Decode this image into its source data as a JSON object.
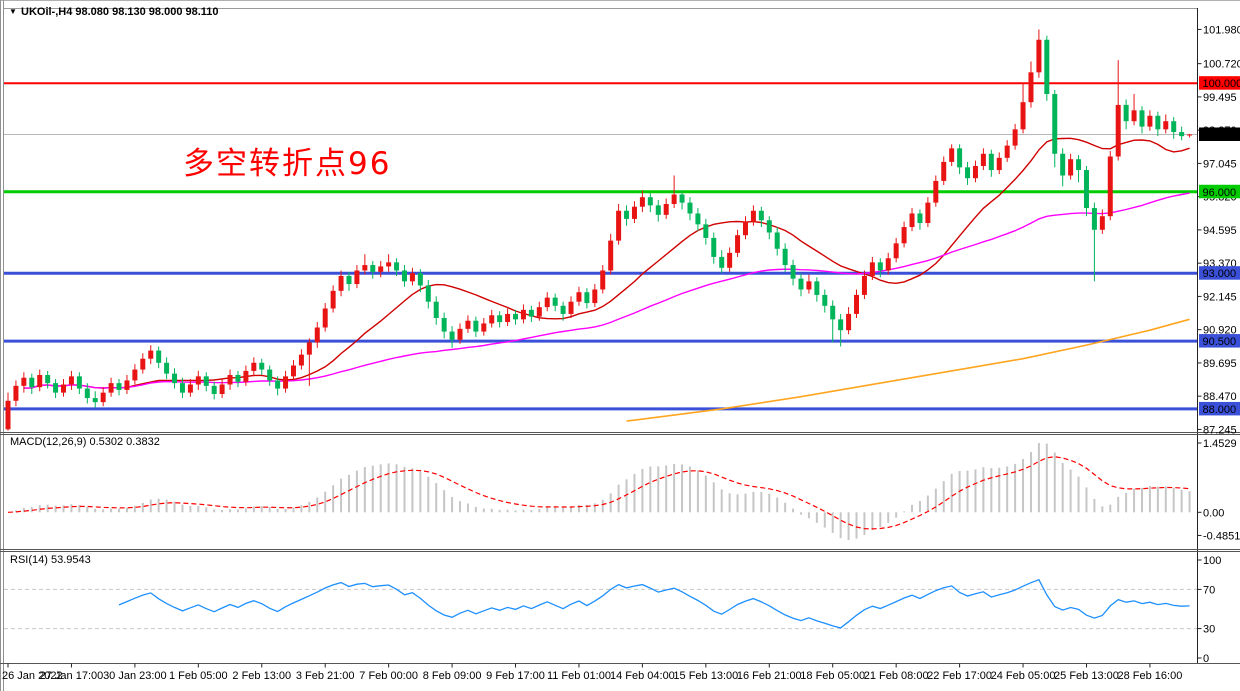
{
  "header": {
    "title": "UKOil-,H4 98.080 98.130 98.000 98.110",
    "symbol": "UKOil-",
    "period": "H4",
    "open": "98.080",
    "high": "98.130",
    "low": "98.000",
    "close": "98.110"
  },
  "icons": {
    "symbol_marker": "▼"
  },
  "annotation": {
    "text": "多空转折点96",
    "color": "#ff0000"
  },
  "indicators": {
    "macd_label": "MACD(12,26,9) 0.5302 0.3832",
    "rsi_label": "RSI(14) 53.9543"
  },
  "axes": {
    "price_ticks": [
      "101.980",
      "100.720",
      "99.495",
      "98.270",
      "97.045",
      "95.820",
      "94.595",
      "93.370",
      "92.145",
      "90.920",
      "89.695",
      "88.470",
      "87.245"
    ],
    "macd_ticks": [
      "1.4529",
      "0.00",
      "-0.4851"
    ],
    "rsi_ticks": [
      "100",
      "70",
      "30",
      "0"
    ],
    "time_ticks": [
      "26 Jan 2022",
      "27 Jan 17:00",
      "30 Jan 23:00",
      "1 Feb 05:00",
      "2 Feb 13:00",
      "3 Feb 21:00",
      "7 Feb 00:00",
      "8 Feb 09:00",
      "9 Feb 17:00",
      "11 Feb 01:00",
      "14 Feb 04:00",
      "15 Feb 13:00",
      "16 Feb 21:00",
      "18 Feb 05:00",
      "21 Feb 08:00",
      "22 Feb 17:00",
      "24 Feb 05:00",
      "25 Feb 13:00",
      "28 Feb 16:00"
    ],
    "bars_per_time_tick": 8
  },
  "levels": [
    {
      "label": "100.000",
      "price": 100.0,
      "color": "#ff0000",
      "width": 2
    },
    {
      "label": "96.000",
      "price": 96.0,
      "color": "#00cc00",
      "width": 3
    },
    {
      "label": "93.000",
      "price": 93.0,
      "color": "#3a50d9",
      "width": 3
    },
    {
      "label": "90.500",
      "price": 90.5,
      "color": "#3a50d9",
      "width": 3
    },
    {
      "label": "88.000",
      "price": 88.0,
      "color": "#3a50d9",
      "width": 3
    }
  ],
  "current_price": {
    "label": "98.110",
    "value": 98.11,
    "badge_color": "#000000",
    "line_color": "#b8b8b8"
  },
  "chart_data": [
    {
      "type": "candlestick",
      "title": "UKOil- H4",
      "up_color": "#e81414",
      "down_color": "#00b45a",
      "ylim": [
        87.15,
        102.77
      ],
      "ohlc": [
        [
          87.25,
          88.6,
          87.2,
          88.3
        ],
        [
          88.3,
          89.05,
          88.1,
          88.85
        ],
        [
          88.85,
          89.35,
          88.6,
          89.15
        ],
        [
          89.15,
          89.3,
          88.55,
          88.8
        ],
        [
          88.8,
          89.45,
          88.65,
          89.25
        ],
        [
          89.25,
          89.4,
          88.75,
          88.95
        ],
        [
          88.95,
          89.1,
          88.4,
          88.6
        ],
        [
          88.6,
          89.1,
          88.45,
          88.9
        ],
        [
          88.9,
          89.4,
          88.7,
          89.2
        ],
        [
          89.2,
          89.35,
          88.55,
          88.75
        ],
        [
          88.75,
          88.95,
          88.2,
          88.4
        ],
        [
          88.4,
          88.65,
          88.05,
          88.25
        ],
        [
          88.25,
          88.8,
          88.1,
          88.6
        ],
        [
          88.6,
          89.15,
          88.45,
          88.95
        ],
        [
          88.95,
          89.1,
          88.5,
          88.7
        ],
        [
          88.7,
          89.25,
          88.55,
          89.05
        ],
        [
          89.05,
          89.65,
          88.9,
          89.45
        ],
        [
          89.45,
          90.05,
          89.3,
          89.85
        ],
        [
          89.85,
          90.35,
          89.65,
          90.15
        ],
        [
          90.15,
          90.3,
          89.5,
          89.7
        ],
        [
          89.7,
          89.9,
          89.1,
          89.3
        ],
        [
          89.3,
          89.5,
          88.75,
          88.95
        ],
        [
          88.95,
          89.15,
          88.4,
          88.6
        ],
        [
          88.6,
          89.1,
          88.45,
          88.9
        ],
        [
          88.9,
          89.4,
          88.7,
          89.2
        ],
        [
          89.2,
          89.35,
          88.65,
          88.85
        ],
        [
          88.85,
          89.0,
          88.35,
          88.55
        ],
        [
          88.55,
          89.1,
          88.4,
          88.9
        ],
        [
          88.9,
          89.45,
          88.7,
          89.25
        ],
        [
          89.25,
          89.4,
          88.8,
          89.0
        ],
        [
          89.0,
          89.6,
          88.85,
          89.4
        ],
        [
          89.4,
          89.9,
          89.2,
          89.7
        ],
        [
          89.7,
          89.85,
          89.25,
          89.45
        ],
        [
          89.45,
          89.6,
          88.85,
          89.05
        ],
        [
          89.05,
          89.2,
          88.5,
          88.75
        ],
        [
          88.75,
          89.4,
          88.6,
          89.2
        ],
        [
          89.2,
          89.8,
          89.05,
          89.6
        ],
        [
          89.6,
          90.2,
          89.45,
          90.0
        ],
        [
          90.0,
          90.6,
          88.85,
          90.45
        ],
        [
          90.45,
          91.2,
          90.25,
          91.0
        ],
        [
          91.0,
          91.9,
          90.85,
          91.7
        ],
        [
          91.7,
          92.55,
          91.55,
          92.35
        ],
        [
          92.35,
          93.1,
          92.15,
          92.9
        ],
        [
          92.9,
          93.05,
          92.35,
          92.6
        ],
        [
          92.6,
          93.3,
          92.45,
          93.1
        ],
        [
          93.1,
          93.7,
          92.95,
          93.3
        ],
        [
          93.3,
          93.45,
          92.8,
          93.05
        ],
        [
          93.05,
          93.45,
          92.85,
          93.25
        ],
        [
          93.25,
          93.7,
          93.05,
          93.4
        ],
        [
          93.4,
          93.55,
          92.9,
          93.1
        ],
        [
          93.1,
          93.3,
          92.5,
          92.7
        ],
        [
          92.7,
          93.2,
          92.55,
          93.0
        ],
        [
          93.0,
          93.15,
          92.3,
          92.55
        ],
        [
          92.55,
          92.75,
          91.7,
          91.95
        ],
        [
          91.95,
          92.15,
          91.1,
          91.35
        ],
        [
          91.35,
          91.55,
          90.6,
          90.85
        ],
        [
          90.85,
          91.05,
          90.25,
          90.55
        ],
        [
          90.55,
          91.15,
          90.4,
          90.95
        ],
        [
          90.95,
          91.45,
          90.8,
          91.25
        ],
        [
          91.25,
          91.4,
          90.65,
          90.85
        ],
        [
          90.85,
          91.35,
          90.7,
          91.15
        ],
        [
          91.15,
          91.65,
          91.0,
          91.45
        ],
        [
          91.45,
          91.6,
          91.0,
          91.2
        ],
        [
          91.2,
          91.7,
          91.05,
          91.5
        ],
        [
          91.5,
          91.65,
          91.1,
          91.3
        ],
        [
          91.3,
          91.85,
          91.15,
          91.65
        ],
        [
          91.65,
          91.8,
          91.2,
          91.4
        ],
        [
          91.4,
          91.95,
          91.25,
          91.75
        ],
        [
          91.75,
          92.3,
          91.6,
          92.1
        ],
        [
          92.1,
          92.25,
          91.6,
          91.8
        ],
        [
          91.8,
          91.95,
          91.25,
          91.5
        ],
        [
          91.5,
          92.15,
          91.35,
          91.95
        ],
        [
          91.95,
          92.5,
          91.8,
          92.3
        ],
        [
          92.3,
          92.45,
          91.7,
          91.9
        ],
        [
          91.9,
          92.6,
          91.75,
          92.4
        ],
        [
          92.4,
          93.3,
          92.25,
          93.1
        ],
        [
          93.1,
          94.45,
          92.95,
          94.2
        ],
        [
          94.2,
          95.55,
          94.05,
          95.3
        ],
        [
          95.3,
          95.5,
          94.75,
          95.0
        ],
        [
          95.0,
          95.65,
          94.85,
          95.45
        ],
        [
          95.45,
          96.05,
          95.25,
          95.8
        ],
        [
          95.8,
          95.95,
          95.25,
          95.5
        ],
        [
          95.5,
          95.7,
          94.9,
          95.15
        ],
        [
          95.15,
          95.75,
          95.0,
          95.55
        ],
        [
          95.55,
          96.6,
          95.4,
          95.9
        ],
        [
          95.9,
          96.05,
          95.35,
          95.6
        ],
        [
          95.6,
          95.8,
          94.95,
          95.2
        ],
        [
          95.2,
          95.4,
          94.55,
          94.8
        ],
        [
          94.8,
          95.0,
          94.05,
          94.3
        ],
        [
          94.3,
          94.5,
          93.35,
          93.6
        ],
        [
          93.6,
          93.85,
          93.0,
          93.2
        ],
        [
          93.2,
          93.95,
          93.05,
          93.75
        ],
        [
          93.75,
          94.6,
          93.6,
          94.4
        ],
        [
          94.4,
          95.1,
          94.25,
          94.9
        ],
        [
          94.9,
          95.5,
          94.75,
          95.3
        ],
        [
          95.3,
          95.45,
          94.7,
          94.95
        ],
        [
          94.95,
          95.1,
          94.25,
          94.5
        ],
        [
          94.5,
          94.7,
          93.65,
          93.9
        ],
        [
          93.9,
          94.1,
          93.05,
          93.3
        ],
        [
          93.3,
          93.5,
          92.55,
          92.8
        ],
        [
          92.8,
          93.0,
          92.15,
          92.4
        ],
        [
          92.4,
          92.95,
          92.25,
          92.7
        ],
        [
          92.7,
          92.85,
          91.95,
          92.2
        ],
        [
          92.2,
          92.4,
          91.55,
          91.8
        ],
        [
          91.8,
          92.0,
          90.45,
          91.3
        ],
        [
          91.3,
          91.5,
          90.3,
          90.9
        ],
        [
          90.9,
          91.75,
          90.75,
          91.5
        ],
        [
          91.5,
          92.4,
          91.35,
          92.2
        ],
        [
          92.2,
          93.1,
          92.05,
          92.9
        ],
        [
          92.9,
          93.6,
          92.75,
          93.4
        ],
        [
          93.4,
          93.55,
          92.85,
          93.1
        ],
        [
          93.1,
          93.75,
          92.95,
          93.55
        ],
        [
          93.55,
          94.3,
          93.4,
          94.1
        ],
        [
          94.1,
          94.9,
          93.95,
          94.7
        ],
        [
          94.7,
          95.4,
          94.55,
          95.2
        ],
        [
          95.2,
          95.35,
          94.6,
          94.85
        ],
        [
          94.85,
          95.8,
          94.7,
          95.6
        ],
        [
          95.6,
          96.6,
          95.45,
          96.4
        ],
        [
          96.4,
          97.3,
          96.25,
          97.1
        ],
        [
          97.1,
          97.75,
          96.95,
          97.6
        ],
        [
          97.6,
          97.75,
          96.65,
          96.9
        ],
        [
          96.9,
          97.1,
          96.25,
          96.5
        ],
        [
          96.5,
          97.15,
          96.35,
          96.95
        ],
        [
          96.95,
          97.6,
          96.8,
          97.4
        ],
        [
          97.4,
          97.55,
          96.55,
          96.8
        ],
        [
          96.8,
          97.45,
          96.65,
          97.25
        ],
        [
          97.25,
          97.9,
          97.1,
          97.7
        ],
        [
          97.7,
          98.5,
          97.55,
          98.3
        ],
        [
          98.3,
          100.0,
          98.15,
          99.3
        ],
        [
          99.3,
          100.8,
          99.1,
          100.4
        ],
        [
          100.4,
          101.98,
          100.2,
          101.6
        ],
        [
          101.6,
          101.75,
          99.35,
          99.6
        ],
        [
          99.6,
          99.75,
          96.9,
          97.4
        ],
        [
          97.4,
          97.6,
          96.2,
          96.6
        ],
        [
          96.6,
          97.4,
          96.45,
          97.2
        ],
        [
          97.2,
          97.35,
          96.35,
          96.8
        ],
        [
          96.8,
          96.95,
          95.1,
          95.4
        ],
        [
          95.4,
          95.6,
          92.7,
          94.6
        ],
        [
          94.6,
          95.35,
          94.45,
          95.1
        ],
        [
          95.1,
          97.5,
          94.95,
          97.3
        ],
        [
          97.3,
          100.85,
          97.15,
          99.2
        ],
        [
          99.2,
          99.4,
          98.3,
          98.6
        ],
        [
          98.6,
          99.6,
          98.45,
          99.0
        ],
        [
          99.0,
          99.15,
          98.15,
          98.4
        ],
        [
          98.4,
          99.0,
          98.25,
          98.8
        ],
        [
          98.8,
          98.95,
          98.05,
          98.3
        ],
        [
          98.3,
          98.85,
          98.15,
          98.6
        ],
        [
          98.6,
          98.75,
          97.95,
          98.2
        ],
        [
          98.2,
          98.4,
          97.9,
          98.05
        ],
        [
          98.08,
          98.13,
          98.0,
          98.11
        ]
      ],
      "moving_averages": [
        {
          "name": "ma-fast",
          "type": "sma",
          "period": 16,
          "color": "#d00000"
        },
        {
          "name": "ma-mid",
          "type": "sma",
          "period": 55,
          "color": "#ff00ff"
        }
      ],
      "ma_long": {
        "name": "ma-long",
        "color": "#ffa520",
        "points": [
          [
            78,
            87.55
          ],
          [
            90,
            88.0
          ],
          [
            100,
            88.45
          ],
          [
            110,
            88.95
          ],
          [
            120,
            89.45
          ],
          [
            128,
            89.85
          ],
          [
            136,
            90.35
          ],
          [
            144,
            90.9
          ],
          [
            149,
            91.3
          ]
        ]
      }
    },
    {
      "type": "bar",
      "name": "MACD",
      "params": "12,26,9",
      "main_value": "0.5302",
      "signal_value": "0.3832",
      "derived_from": "closes of ohlc, EMA12-EMA26 with EMA9 signal, histogram = main line",
      "hist_color": "#c6c6c6",
      "signal_color": "#ff0000",
      "yticks": [
        1.4529,
        0.0,
        -0.4851
      ]
    },
    {
      "type": "line",
      "name": "RSI",
      "period": 14,
      "value": "53.9543",
      "derived_from": "closes of ohlc, Wilder RSI(14)",
      "line_color": "#1e90ff",
      "level_lines": [
        70,
        30
      ],
      "yticks": [
        100,
        70,
        30,
        0
      ]
    }
  ]
}
